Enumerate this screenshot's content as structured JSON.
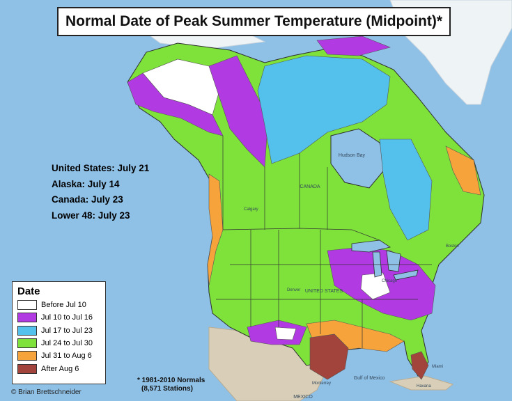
{
  "title": "Normal Date of Peak Summer Temperature (Midpoint)*",
  "summary": [
    "United States: July 21",
    "Alaska: July 14",
    "Canada: July 23",
    "Lower 48: July 23"
  ],
  "legend": {
    "title": "Date",
    "items": [
      {
        "label": "Before Jul 10",
        "color": "#ffffff"
      },
      {
        "label": "Jul 10 to Jul 16",
        "color": "#b13ae3"
      },
      {
        "label": "Jul 17 to Jul 23",
        "color": "#53c1eb"
      },
      {
        "label": "Jul 24 to Jul 30",
        "color": "#7ee23b"
      },
      {
        "label": "Jul 31 to Aug 6",
        "color": "#f5a33a"
      },
      {
        "label": "After Aug 6",
        "color": "#a2443b"
      }
    ]
  },
  "footnote": [
    "* 1981-2010 Normals",
    "(8,571 Stations)"
  ],
  "credit": "© Brian Brettschneider",
  "map_labels": {
    "hudson_bay": "Hudson Bay",
    "canada": "CANADA",
    "united_states": "UNITED STATES",
    "gulf_of_mexico": "Gulf of Mexico",
    "mexico": "MEXICO",
    "calgary": "Calgary",
    "denver": "Denver",
    "chicago": "Chicago",
    "boston": "Boston",
    "miami": "Miami",
    "havana": "Havana",
    "monterrey": "Monterrey"
  },
  "colors": {
    "ocean": "#8fc0e6",
    "ice": "#eef3f6",
    "mexico_land": "#d9cfb8"
  }
}
